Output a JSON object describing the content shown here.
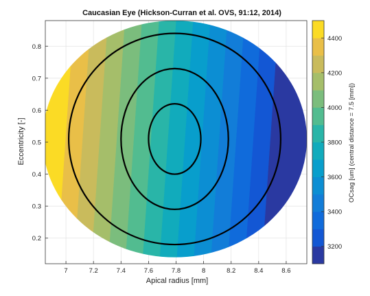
{
  "chart_data": {
    "type": "heatmap",
    "title": "Caucasian Eye (Hickson-Curran et al. OVS, 91:12, 2014)",
    "xlabel": "Apical radius [mm]",
    "ylabel": "Eccentricity [-]",
    "colorbar_label": "OCsag [um] (central distance = 7.5 [mm])",
    "xlim": [
      6.85,
      8.75
    ],
    "ylim": [
      0.12,
      0.88
    ],
    "x_ticks": [
      "7",
      "7.2",
      "7.4",
      "7.6",
      "7.8",
      "8",
      "8.2",
      "8.4",
      "8.6"
    ],
    "y_ticks": [
      "0.2",
      "0.3",
      "0.4",
      "0.5",
      "0.6",
      "0.7",
      "0.8"
    ],
    "colorbar_ticks": [
      "3200",
      "3400",
      "3600",
      "3800",
      "4000",
      "4200",
      "4400"
    ],
    "colorbar_range": [
      3100,
      4500
    ],
    "colorbar_levels": 14,
    "field": {
      "description_of_values": "OCsag as a function of apical radius and eccentricity",
      "reference_points": [
        {
          "apical_radius": 6.9,
          "eccentricity": 0.3,
          "ocsag": 4450
        },
        {
          "apical_radius": 7.8,
          "eccentricity": 0.5,
          "ocsag": 3750
        },
        {
          "apical_radius": 8.6,
          "eccentricity": 0.85,
          "ocsag": 3150
        }
      ]
    },
    "data_domain": {
      "center": [
        7.79,
        0.51
      ],
      "radius_x": 0.96,
      "radius_y": 0.37
    },
    "contour_ellipses": [
      {
        "center": [
          7.79,
          0.51
        ],
        "radius_x": 0.19,
        "radius_y": 0.11
      },
      {
        "center": [
          7.79,
          0.51
        ],
        "radius_x": 0.39,
        "radius_y": 0.22
      },
      {
        "center": [
          7.79,
          0.51
        ],
        "radius_x": 0.77,
        "radius_y": 0.33
      }
    ],
    "grid": true
  }
}
